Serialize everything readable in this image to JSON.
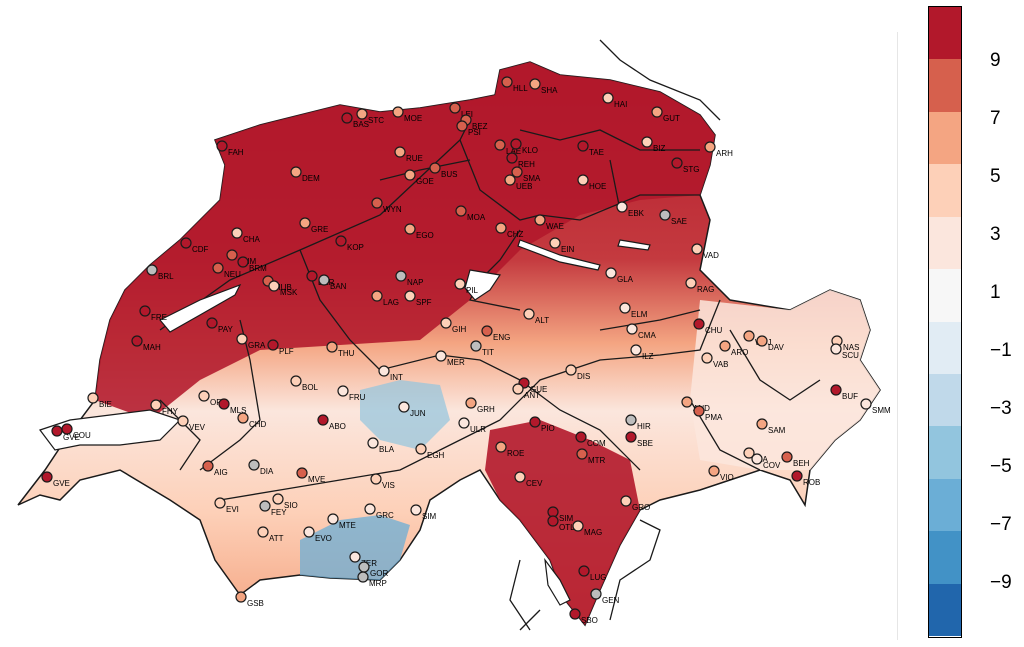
{
  "colorbar": {
    "ticks": [
      "9",
      "7",
      "5",
      "3",
      "1",
      "−1",
      "−3",
      "−5",
      "−7",
      "−9"
    ],
    "colors": [
      "#b2182b",
      "#d6604d",
      "#f4a582",
      "#fdd0b8",
      "#fbe6dd",
      "#f7f7f7",
      "#e1ecf4",
      "#c0d9ea",
      "#92c5de",
      "#6baed6",
      "#4292c6",
      "#2166ac"
    ]
  },
  "stations": [
    {
      "id": "HLL",
      "c": "#d6604d"
    },
    {
      "id": "SHA",
      "c": "#f4a582"
    },
    {
      "id": "HAI",
      "c": "#fdd0b8"
    },
    {
      "id": "GUT",
      "c": "#f4a582"
    },
    {
      "id": "BAS",
      "c": "#b2182b"
    },
    {
      "id": "STC",
      "c": "#f4a582"
    },
    {
      "id": "MOE",
      "c": "#f4a582"
    },
    {
      "id": "LEI",
      "c": "#d6604d"
    },
    {
      "id": "BEZ",
      "c": "#d6604d"
    },
    {
      "id": "PSI",
      "c": "#d6604d"
    },
    {
      "id": "FAH",
      "c": "#b2182b"
    },
    {
      "id": "RUE",
      "c": "#f4a582"
    },
    {
      "id": "LAE",
      "c": "#d6604d"
    },
    {
      "id": "KLO",
      "c": "#b2182b"
    },
    {
      "id": "TAE",
      "c": "#b2182b"
    },
    {
      "id": "BIZ",
      "c": "#fdd0b8"
    },
    {
      "id": "ARH",
      "c": "#f4a582"
    },
    {
      "id": "REH",
      "c": "#b2182b"
    },
    {
      "id": "SMA",
      "c": "#d6604d"
    },
    {
      "id": "UEB",
      "c": "#f4a582"
    },
    {
      "id": "STG",
      "c": "#b2182b"
    },
    {
      "id": "DEM",
      "c": "#f4a582"
    },
    {
      "id": "GOE",
      "c": "#f4a582"
    },
    {
      "id": "BUS",
      "c": "#d6604d"
    },
    {
      "id": "HOE",
      "c": "#fdd0b8"
    },
    {
      "id": "EBK",
      "c": "#fbe6dd"
    },
    {
      "id": "SAE",
      "c": "#bdbdbd"
    },
    {
      "id": "WYN",
      "c": "#d6604d"
    },
    {
      "id": "MOA",
      "c": "#d6604d"
    },
    {
      "id": "WAE",
      "c": "#f4a582"
    },
    {
      "id": "CHZ",
      "c": "#f4a582"
    },
    {
      "id": "EIN",
      "c": "#fdd0b8"
    },
    {
      "id": "GRE",
      "c": "#f4a582"
    },
    {
      "id": "EGO",
      "c": "#f4a582"
    },
    {
      "id": "CDF",
      "c": "#b2182b"
    },
    {
      "id": "CHA",
      "c": "#fdd0b8"
    },
    {
      "id": "KOP",
      "c": "#b2182b"
    },
    {
      "id": "VAD",
      "c": "#fdd0b8"
    },
    {
      "id": "CHM",
      "c": "#d6604d"
    },
    {
      "id": "BRL",
      "c": "#bdbdbd"
    },
    {
      "id": "NEU",
      "c": "#d6604d"
    },
    {
      "id": "BRM",
      "c": "#b2182b"
    },
    {
      "id": "MUB",
      "c": "#d6604d"
    },
    {
      "id": "MSK",
      "c": "#fdd0b8"
    },
    {
      "id": "BER",
      "c": "#b2182b"
    },
    {
      "id": "BAN",
      "c": "#bdbdbd"
    },
    {
      "id": "NAP",
      "c": "#bdbdbd"
    },
    {
      "id": "PIL",
      "c": "#fdd0b8"
    },
    {
      "id": "GLA",
      "c": "#fbe6dd"
    },
    {
      "id": "RAG",
      "c": "#fdd0b8"
    },
    {
      "id": "LAG",
      "c": "#f4a582"
    },
    {
      "id": "SPF",
      "c": "#fdd0b8"
    },
    {
      "id": "FRE",
      "c": "#b2182b"
    },
    {
      "id": "PAY",
      "c": "#b2182b"
    },
    {
      "id": "ELM",
      "c": "#fbe6dd"
    },
    {
      "id": "ALT",
      "c": "#fdd0b8"
    },
    {
      "id": "CHU",
      "c": "#b2182b"
    },
    {
      "id": "GIH",
      "c": "#fdd0b8"
    },
    {
      "id": "ENG",
      "c": "#d6604d"
    },
    {
      "id": "TIT",
      "c": "#bdbdbd"
    },
    {
      "id": "CMA",
      "c": "#fbe6dd"
    },
    {
      "id": "WFJ",
      "c": "#f4a582"
    },
    {
      "id": "DAV",
      "c": "#f4a582"
    },
    {
      "id": "ARO",
      "c": "#f4a582"
    },
    {
      "id": "NAS",
      "c": "#fdd0b8"
    },
    {
      "id": "SCU",
      "c": "#fbe6dd"
    },
    {
      "id": "MAH",
      "c": "#b2182b"
    },
    {
      "id": "GRA",
      "c": "#fdd0b8"
    },
    {
      "id": "PLF",
      "c": "#b2182b"
    },
    {
      "id": "THU",
      "c": "#f4a582"
    },
    {
      "id": "ILZ",
      "c": "#fbe6dd"
    },
    {
      "id": "VAB",
      "c": "#fdd0b8"
    },
    {
      "id": "MER",
      "c": "#fbe6dd"
    },
    {
      "id": "INT",
      "c": "#fbe6dd"
    },
    {
      "id": "DIS",
      "c": "#fdd0b8"
    },
    {
      "id": "BOL",
      "c": "#fdd0b8"
    },
    {
      "id": "GUE",
      "c": "#b2182b"
    },
    {
      "id": "ANT",
      "c": "#fdd0b8"
    },
    {
      "id": "FRU",
      "c": "#fbe6dd"
    },
    {
      "id": "BIE",
      "c": "#fdd0b8"
    },
    {
      "id": "ORO",
      "c": "#fdd0b8"
    },
    {
      "id": "MLS",
      "c": "#b2182b"
    },
    {
      "id": "FHY",
      "c": "#fdd0b8"
    },
    {
      "id": "VEV",
      "c": "#fdd0b8"
    },
    {
      "id": "CHD",
      "c": "#f4a582"
    },
    {
      "id": "JUN",
      "c": "#fbe6dd"
    },
    {
      "id": "GRH",
      "c": "#f4a582"
    },
    {
      "id": "BUF",
      "c": "#b2182b"
    },
    {
      "id": "AND",
      "c": "#f4a582"
    },
    {
      "id": "PMA",
      "c": "#d6604d"
    },
    {
      "id": "SMM",
      "c": "#fbe6dd"
    },
    {
      "id": "ABO",
      "c": "#b2182b"
    },
    {
      "id": "COU",
      "c": "#b2182b"
    },
    {
      "id": "GVE2",
      "c": "#b2182b"
    },
    {
      "id": "ULR",
      "c": "#fbe6dd"
    },
    {
      "id": "PIO",
      "c": "#b2182b"
    },
    {
      "id": "HIR",
      "c": "#bdbdbd"
    },
    {
      "id": "SBE",
      "c": "#b2182b"
    },
    {
      "id": "SAM",
      "c": "#f4a582"
    },
    {
      "id": "BLA",
      "c": "#fbe6dd"
    },
    {
      "id": "EGH",
      "c": "#fdd0b8"
    },
    {
      "id": "ROE",
      "c": "#f4a582"
    },
    {
      "id": "COM",
      "c": "#b2182b"
    },
    {
      "id": "MTR",
      "c": "#d6604d"
    },
    {
      "id": "AIG",
      "c": "#d6604d"
    },
    {
      "id": "DIA",
      "c": "#bdbdbd"
    },
    {
      "id": "SIA",
      "c": "#fdd0b8"
    },
    {
      "id": "COV",
      "c": "#fbe6dd"
    },
    {
      "id": "BEH",
      "c": "#d6604d"
    },
    {
      "id": "ROB",
      "c": "#b2182b"
    },
    {
      "id": "GVE",
      "c": "#b2182b"
    },
    {
      "id": "MVE",
      "c": "#d6604d"
    },
    {
      "id": "VIS",
      "c": "#fdd0b8"
    },
    {
      "id": "CEV",
      "c": "#fdd0b8"
    },
    {
      "id": "VIO",
      "c": "#f4a582"
    },
    {
      "id": "EVI",
      "c": "#fdd0b8"
    },
    {
      "id": "SIO",
      "c": "#fdd0b8"
    },
    {
      "id": "FEY",
      "c": "#bdbdbd"
    },
    {
      "id": "GRC",
      "c": "#fbe6dd"
    },
    {
      "id": "SIM",
      "c": "#fbe6dd"
    },
    {
      "id": "GRO",
      "c": "#fdd0b8"
    },
    {
      "id": "MTE",
      "c": "#fbe6dd"
    },
    {
      "id": "EVO",
      "c": "#fbe6dd"
    },
    {
      "id": "ATT",
      "c": "#fdd0b8"
    },
    {
      "id": "SIM2",
      "c": "#b2182b"
    },
    {
      "id": "OTL",
      "c": "#b2182b"
    },
    {
      "id": "MAG",
      "c": "#fdd0b8"
    },
    {
      "id": "ZER",
      "c": "#fbe6dd"
    },
    {
      "id": "GOR",
      "c": "#bdbdbd"
    },
    {
      "id": "MRP",
      "c": "#bdbdbd"
    },
    {
      "id": "LUG",
      "c": "#b2182b"
    },
    {
      "id": "GEN",
      "c": "#bdbdbd"
    },
    {
      "id": "SBO",
      "c": "#b2182b"
    },
    {
      "id": "GSB",
      "c": "#f4a582"
    }
  ]
}
